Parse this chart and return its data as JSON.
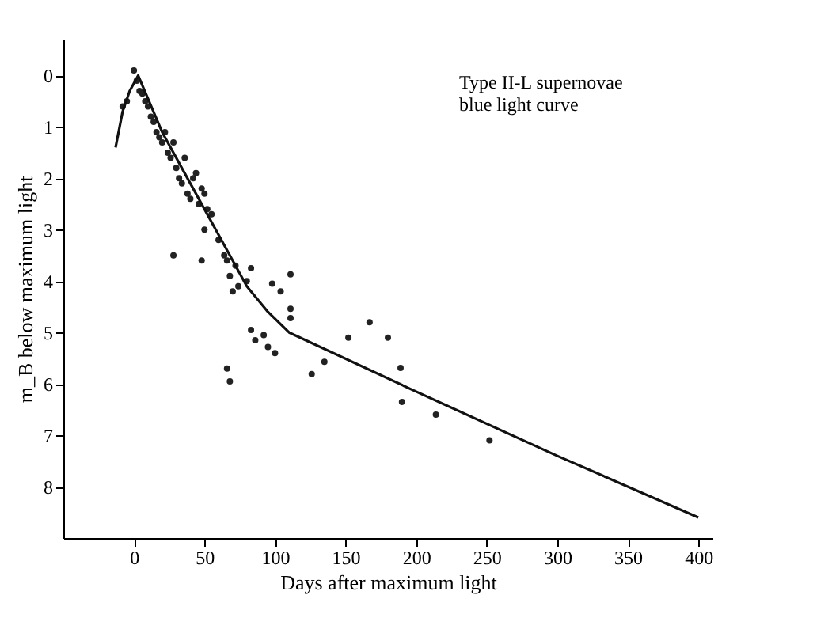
{
  "chart_data": {
    "type": "scatter",
    "xlabel": "Days after maximum light",
    "ylabel": "m_B below maximum light",
    "annotations": [
      "Type II-L supernovae\nblue light curve"
    ],
    "xlim": [
      -50,
      410
    ],
    "ylim": [
      9,
      -0.7
    ],
    "xticks": [
      0,
      50,
      100,
      150,
      200,
      250,
      300,
      350,
      400
    ],
    "yticks": [
      0,
      1,
      2,
      3,
      4,
      5,
      6,
      7,
      8
    ],
    "grid": false,
    "marker": "circle",
    "series": [
      {
        "color": "#222222",
        "x": [
          -8,
          -5,
          0,
          2,
          4,
          6,
          8,
          10,
          12,
          14,
          16,
          18,
          20,
          22,
          24,
          26,
          28,
          30,
          32,
          34,
          36,
          38,
          40,
          42,
          44,
          46,
          48,
          50,
          52,
          50,
          48,
          28,
          55,
          60,
          64,
          66,
          68,
          72,
          74,
          70,
          66,
          68,
          83,
          80,
          98,
          104,
          111,
          111,
          111,
          83,
          86,
          92,
          95,
          100,
          126,
          135,
          152,
          167,
          180,
          189,
          190,
          214,
          252
        ],
        "values": [
          0.6,
          0.5,
          -0.1,
          0.1,
          0.3,
          0.35,
          0.5,
          0.6,
          0.8,
          0.9,
          1.1,
          1.2,
          1.3,
          1.1,
          1.5,
          1.6,
          1.3,
          1.8,
          2.0,
          2.1,
          1.6,
          2.3,
          2.4,
          2.0,
          1.9,
          2.5,
          2.2,
          2.3,
          2.6,
          3.0,
          3.6,
          3.5,
          2.7,
          3.2,
          3.5,
          3.6,
          3.9,
          3.7,
          4.1,
          4.2,
          5.7,
          5.95,
          3.75,
          4.0,
          4.05,
          4.2,
          3.87,
          4.54,
          4.72,
          4.95,
          5.15,
          5.05,
          5.28,
          5.4,
          5.81,
          5.57,
          5.1,
          4.8,
          5.1,
          5.69,
          6.35,
          6.6,
          7.1
        ]
      },
      {
        "type": "line",
        "color": "#111111",
        "line_style": "solid",
        "marker": "none",
        "x": [
          -13,
          -8,
          -3,
          3,
          20,
          40,
          60,
          80,
          95,
          110,
          200,
          300,
          400
        ],
        "values": [
          1.4,
          0.7,
          0.3,
          0.0,
          1.1,
          2.1,
          3.1,
          4.1,
          4.6,
          5.0,
          6.15,
          7.4,
          8.6
        ]
      }
    ]
  }
}
